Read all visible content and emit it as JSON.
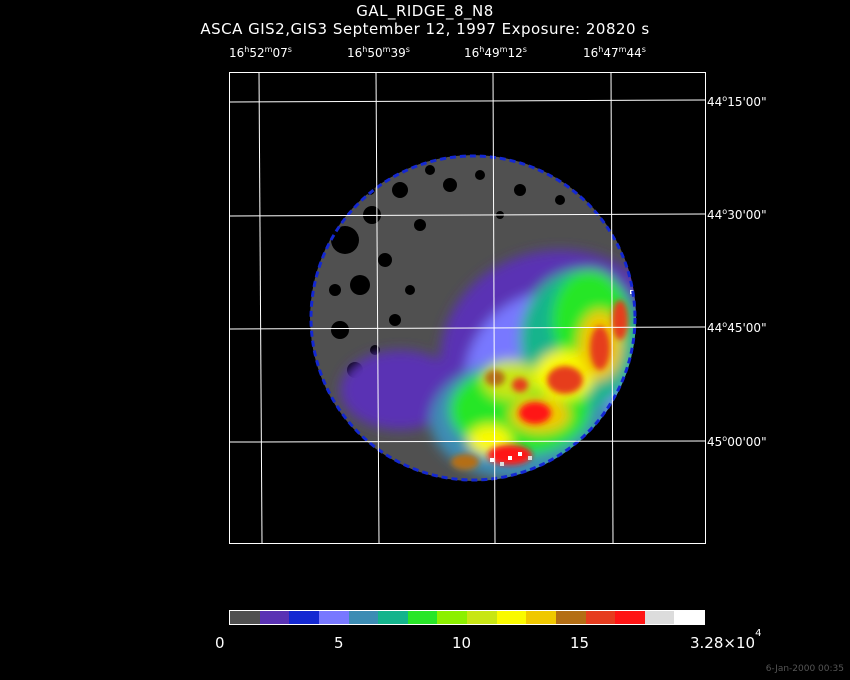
{
  "title": "GAL_RIDGE_8_N8",
  "subtitle": "ASCA GIS2,GIS3 September 12, 1997 Exposure: 20820 s",
  "ra_labels": [
    {
      "h": "16",
      "m": "52",
      "s": "07"
    },
    {
      "h": "16",
      "m": "50",
      "s": "39"
    },
    {
      "h": "16",
      "m": "49",
      "s": "12"
    },
    {
      "h": "16",
      "m": "47",
      "s": "44"
    }
  ],
  "dec_labels": [
    {
      "d": "44",
      "m": "15",
      "s": "00"
    },
    {
      "d": "44",
      "m": "30",
      "s": "00"
    },
    {
      "d": "44",
      "m": "45",
      "s": "00"
    },
    {
      "d": "45",
      "m": "00",
      "s": "00"
    }
  ],
  "colorbar": {
    "colors": [
      "#505050",
      "#5a32b4",
      "#1428d2",
      "#7878ff",
      "#3c8cb4",
      "#14b48c",
      "#28e628",
      "#8cf000",
      "#c8e614",
      "#fafa00",
      "#f0c800",
      "#b46e14",
      "#e63c1e",
      "#ff1414",
      "#dcdcdc",
      "#ffffff"
    ],
    "tick_labels": [
      "0",
      "5",
      "10",
      "15"
    ],
    "max_label_mantissa": "3.28×10",
    "max_label_exponent": "4"
  },
  "footer_timestamp": "6-Jan-2000 00:35"
}
